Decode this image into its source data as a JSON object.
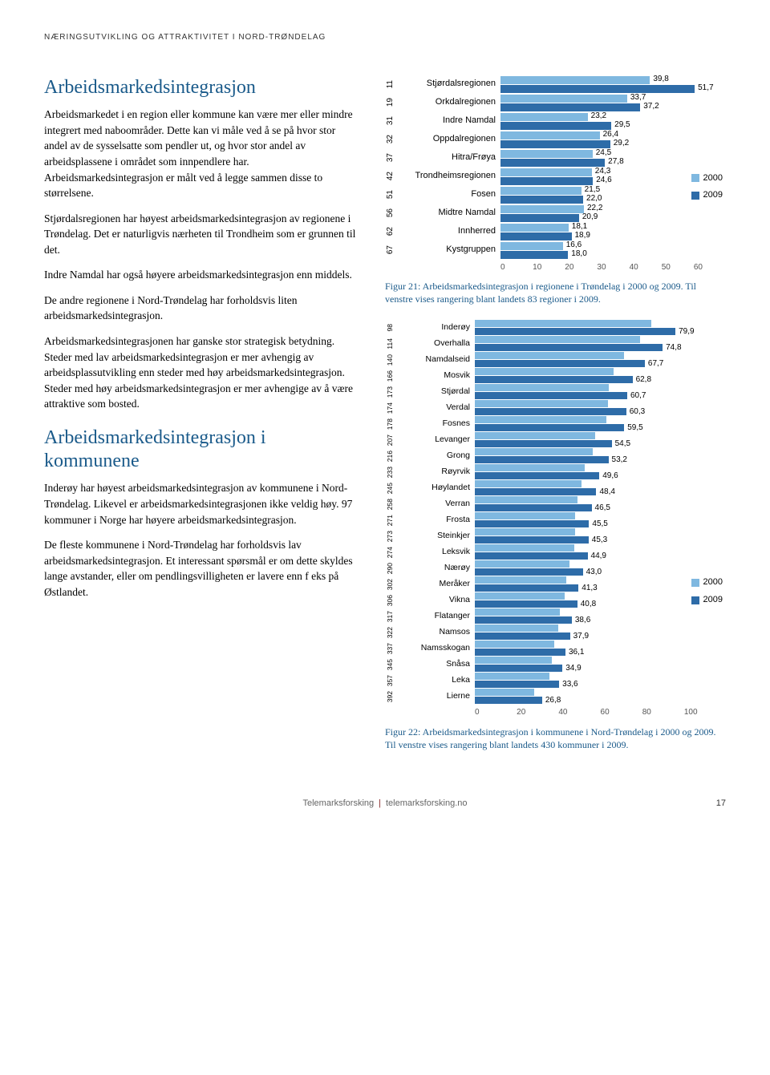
{
  "running_header": "NÆRINGSUTVIKLING OG ATTRAKTIVITET I NORD-TRØNDELAG",
  "left": {
    "h1": "Arbeidsmarkedsintegrasjon",
    "p1": "Arbeidsmarkedet i en region eller kommune kan være mer eller mindre integrert med naboområder. Dette kan vi måle ved å se på hvor stor andel av de sysselsatte som pendler ut, og hvor stor andel av arbeidsplassene i området som innpendlere har. Arbeidsmarkedsintegrasjon er målt ved å legge sammen disse to størrelsene.",
    "p2": "Stjørdalsregionen har høyest arbeidsmarkedsintegrasjon av regionene i Trøndelag. Det er naturligvis nærheten til Trondheim som er grunnen til det.",
    "p3": "Indre Namdal har også høyere arbeidsmarkedsintegrasjon enn middels.",
    "p4": "De andre regionene i Nord-Trøndelag har forholdsvis liten arbeidsmarkedsintegrasjon.",
    "p5": "Arbeidsmarkedsintegrasjonen har ganske stor strategisk betydning. Steder med lav arbeidsmarkedsintegrasjon er mer avhengig av arbeidsplassutvikling enn steder med høy arbeidsmarkedsintegrasjon. Steder med høy arbeidsmarkedsintegrasjon er mer avhengige av å være attraktive som bosted.",
    "h2": "Arbeidsmarkedsintegrasjon i kommunene",
    "p6": "Inderøy har høyest arbeidsmarkedsintegrasjon av kommunene i Nord-Trøndelag. Likevel er arbeidsmarkedsintegrasjonen ikke veldig høy. 97 kommuner i Norge har høyere arbeidsmarkedsintegrasjon.",
    "p7": "De fleste kommunene i Nord-Trøndelag har forholdsvis lav arbeidsmarkedsintegrasjon. Et interessant spørsmål er om dette skyldes lange avstander, eller om pendlingsvilligheten er lavere enn f eks på Østlandet."
  },
  "chart1": {
    "color_2000": "#7fb8e0",
    "color_2009": "#2e6ca8",
    "legend_2000": "2000",
    "legend_2009": "2009",
    "xmax": 60,
    "xticks": [
      "0",
      "10",
      "20",
      "30",
      "40",
      "50",
      "60"
    ],
    "rows": [
      {
        "rank": "11",
        "label": "Stjørdalsregionen",
        "v2000": 39.8,
        "v2009": 51.7
      },
      {
        "rank": "19",
        "label": "Orkdalregionen",
        "v2000": 33.7,
        "v2009": 37.2
      },
      {
        "rank": "31",
        "label": "Indre Namdal",
        "v2000": 23.2,
        "v2009": 29.5
      },
      {
        "rank": "32",
        "label": "Oppdalregionen",
        "v2000": 26.4,
        "v2009": 29.2
      },
      {
        "rank": "37",
        "label": "Hitra/Frøya",
        "v2000": 24.5,
        "v2009": 27.8
      },
      {
        "rank": "42",
        "label": "Trondheimsregionen",
        "v2000": 24.3,
        "v2009": 24.6
      },
      {
        "rank": "51",
        "label": "Fosen",
        "v2000": 21.5,
        "v2009": 22.0
      },
      {
        "rank": "56",
        "label": "Midtre Namdal",
        "v2000": 22.2,
        "v2009": 20.9
      },
      {
        "rank": "62",
        "label": "Innherred",
        "v2000": 18.1,
        "v2009": 18.9
      },
      {
        "rank": "67",
        "label": "Kystgruppen",
        "v2000": 16.6,
        "v2009": 18.0
      }
    ],
    "caption": "Figur 21: Arbeidsmarkedsintegrasjon i regionene i Trøndelag i 2000 og 2009. Til venstre vises rangering blant landets 83 regioner i 2009."
  },
  "chart2": {
    "color_2000": "#7fb8e0",
    "color_2009": "#2e6ca8",
    "legend_2000": "2000",
    "legend_2009": "2009",
    "xmax": 100,
    "xticks": [
      "0",
      "20",
      "40",
      "60",
      "80",
      "100"
    ],
    "rows": [
      {
        "rank": "98",
        "label": "Inderøy",
        "v2009": 79.9
      },
      {
        "rank": "114",
        "label": "Overhalla",
        "v2009": 74.8
      },
      {
        "rank": "140",
        "label": "Namdalseid",
        "v2009": 67.7
      },
      {
        "rank": "166",
        "label": "Mosvik",
        "v2009": 62.8
      },
      {
        "rank": "173",
        "label": "Stjørdal",
        "v2009": 60.7
      },
      {
        "rank": "174",
        "label": "Verdal",
        "v2009": 60.3
      },
      {
        "rank": "178",
        "label": "Fosnes",
        "v2009": 59.5
      },
      {
        "rank": "207",
        "label": "Levanger",
        "v2009": 54.5
      },
      {
        "rank": "216",
        "label": "Grong",
        "v2009": 53.2
      },
      {
        "rank": "233",
        "label": "Røyrvik",
        "v2009": 49.6
      },
      {
        "rank": "245",
        "label": "Høylandet",
        "v2009": 48.4
      },
      {
        "rank": "258",
        "label": "Verran",
        "v2009": 46.5
      },
      {
        "rank": "271",
        "label": "Frosta",
        "v2009": 45.5
      },
      {
        "rank": "273",
        "label": "Steinkjer",
        "v2009": 45.3
      },
      {
        "rank": "274",
        "label": "Leksvik",
        "v2009": 44.9
      },
      {
        "rank": "290",
        "label": "Nærøy",
        "v2009": 43.0
      },
      {
        "rank": "302",
        "label": "Meråker",
        "v2009": 41.3
      },
      {
        "rank": "306",
        "label": "Vikna",
        "v2009": 40.8
      },
      {
        "rank": "317",
        "label": "Flatanger",
        "v2009": 38.6
      },
      {
        "rank": "322",
        "label": "Namsos",
        "v2009": 37.9
      },
      {
        "rank": "337",
        "label": "Namsskogan",
        "v2009": 36.1
      },
      {
        "rank": "345",
        "label": "Snåsa",
        "v2009": 34.9
      },
      {
        "rank": "357",
        "label": "Leka",
        "v2009": 33.6
      },
      {
        "rank": "392",
        "label": "Lierne",
        "v2009": 26.8
      }
    ],
    "caption": "Figur 22: Arbeidsmarkedsintegrasjon i kommunene i Nord-Trøndelag i 2000 og 2009. Til venstre vises rangering blant landets 430 kommuner i 2009."
  },
  "footer": {
    "org": "Telemarksforsking",
    "site": "telemarksforsking.no",
    "page": "17"
  }
}
